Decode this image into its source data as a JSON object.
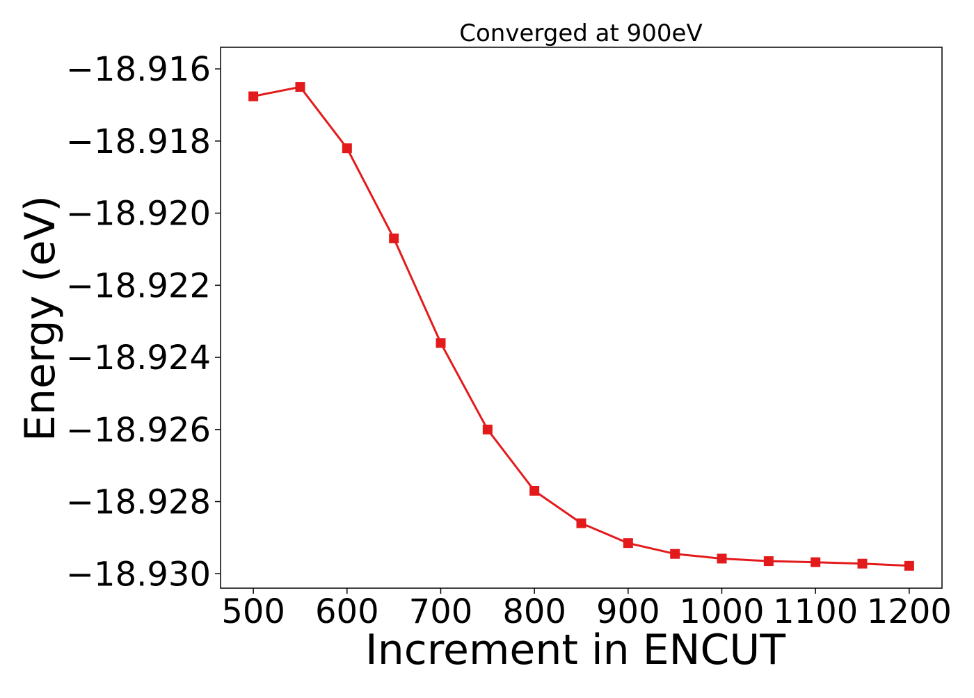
{
  "chart_data": {
    "type": "line",
    "title": "Converged at 900eV",
    "xlabel": "Increment in ENCUT",
    "ylabel": "Energy (eV)",
    "x": [
      500,
      550,
      600,
      650,
      700,
      750,
      800,
      850,
      900,
      950,
      1000,
      1050,
      1100,
      1150,
      1200
    ],
    "series": [
      {
        "values": [
          -18.91676,
          -18.9165,
          -18.9182,
          -18.9207,
          -18.9236,
          -18.926,
          -18.9277,
          -18.9286,
          -18.92915,
          -18.92945,
          -18.92958,
          -18.92965,
          -18.92968,
          -18.92972,
          -18.92978
        ],
        "color": "#e31a1c",
        "marker": "square"
      }
    ],
    "xlim": [
      465,
      1235
    ],
    "ylim": [
      -18.9304,
      -18.9154
    ],
    "xticks": [
      500,
      600,
      700,
      800,
      900,
      1000,
      1100,
      1200
    ],
    "yticks": [
      -18.916,
      -18.918,
      -18.92,
      -18.922,
      -18.924,
      -18.926,
      -18.928,
      -18.93
    ],
    "ytick_labels": [
      "−18.916",
      "−18.918",
      "−18.920",
      "−18.922",
      "−18.924",
      "−18.926",
      "−18.928",
      "−18.930"
    ],
    "grid": false,
    "legend": false
  }
}
